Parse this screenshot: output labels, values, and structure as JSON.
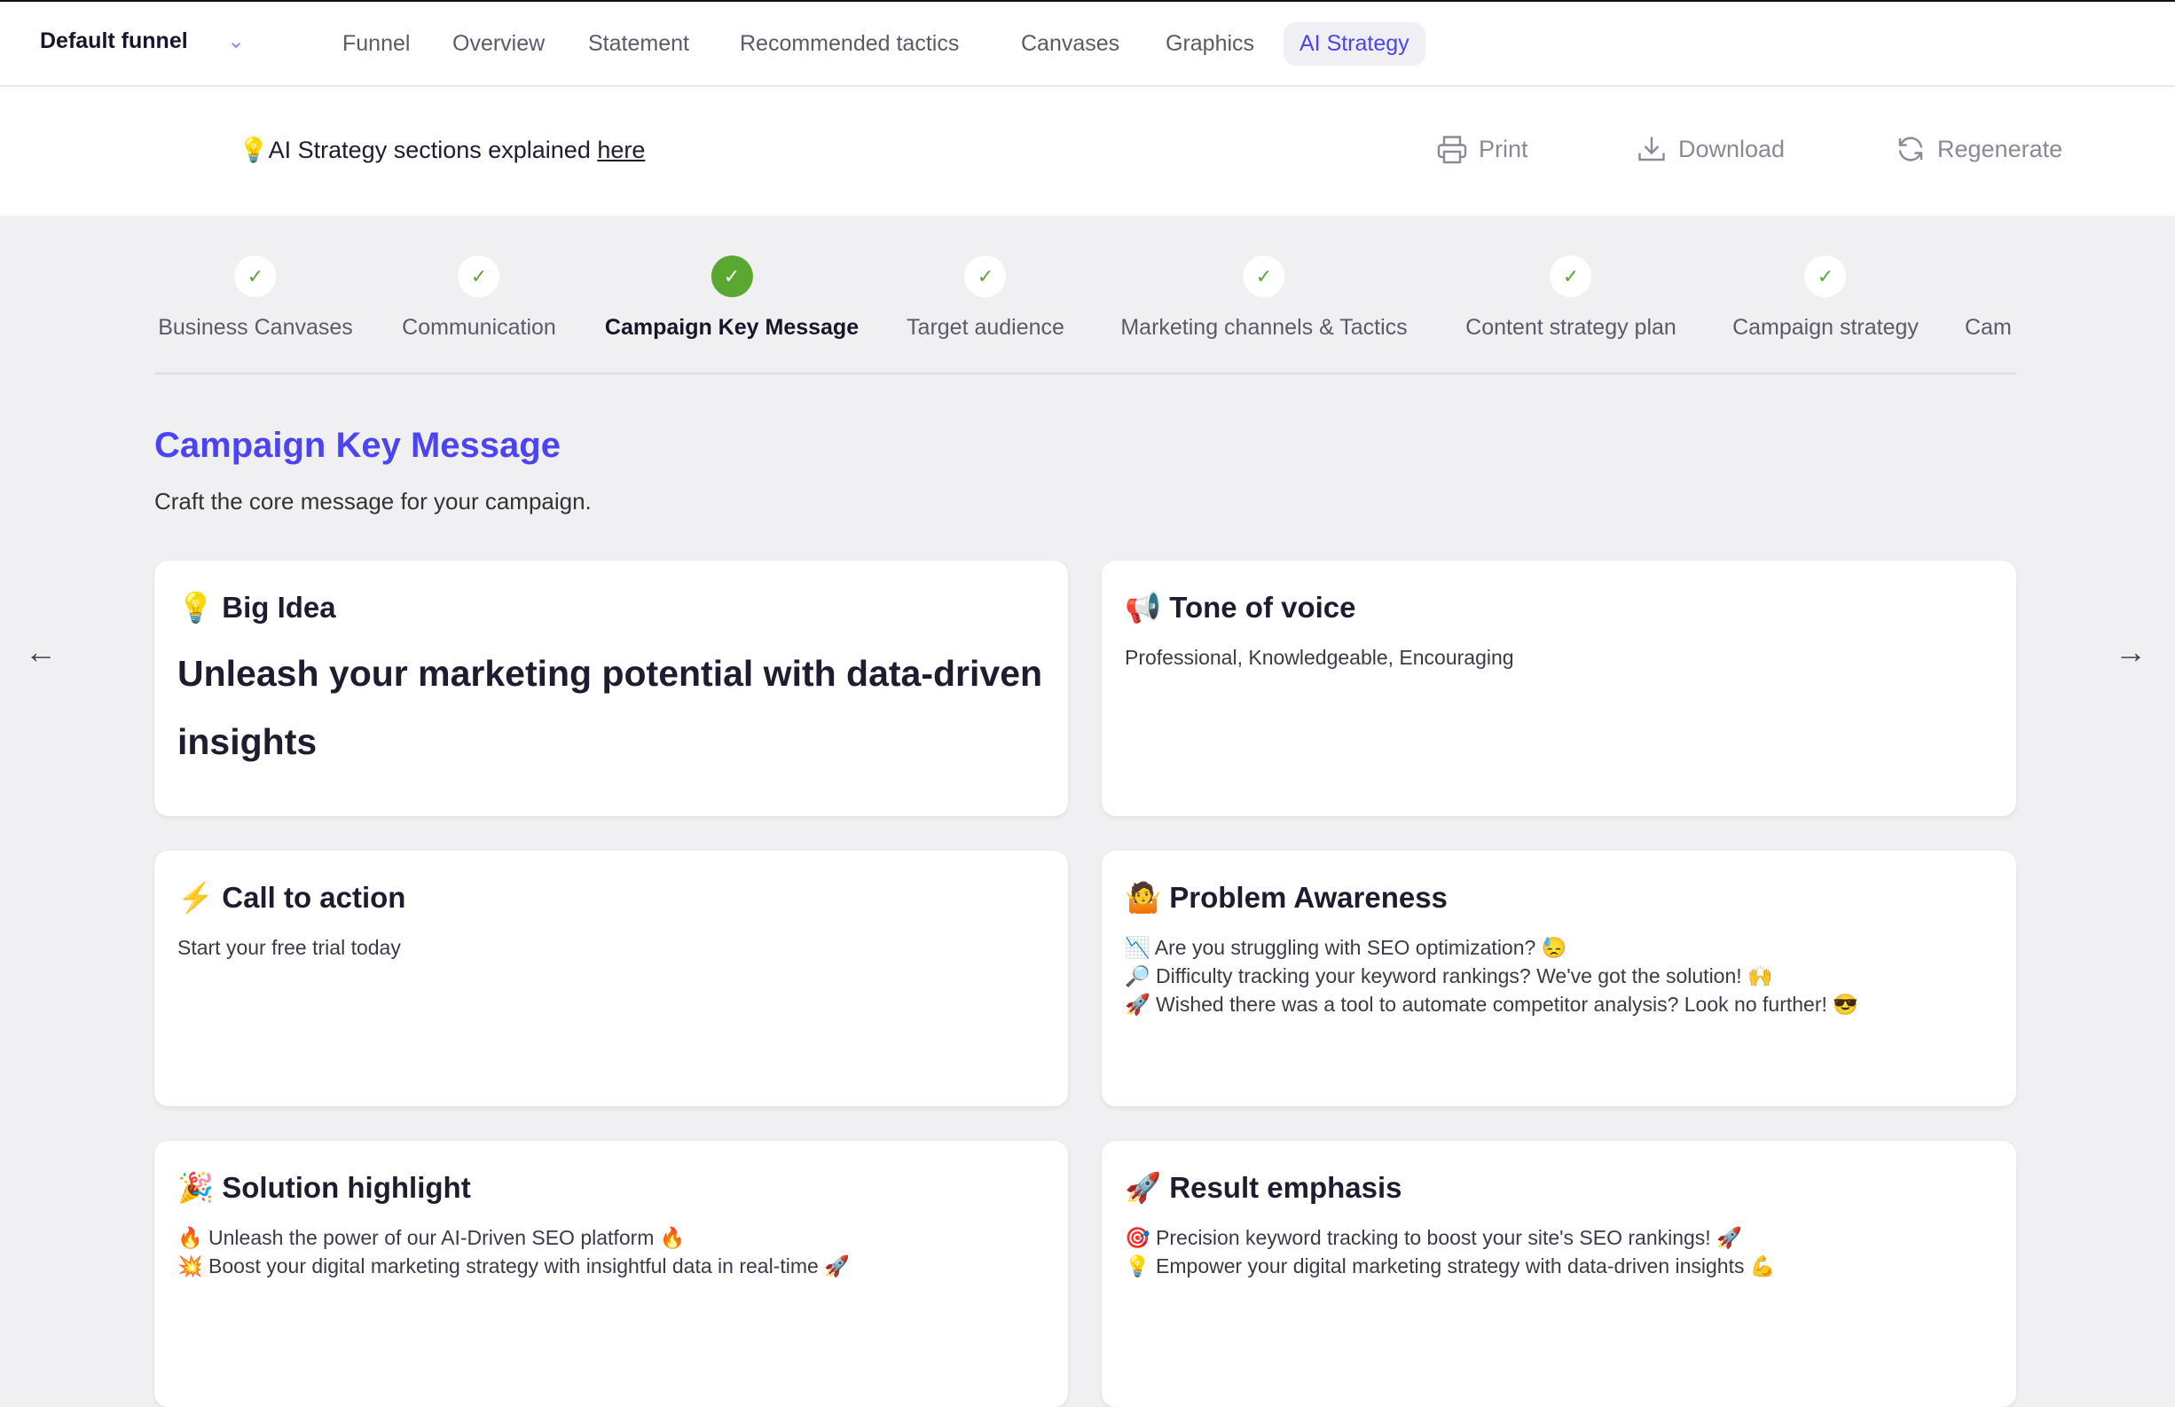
{
  "header": {
    "funnel_name": "Default funnel",
    "nav": [
      "Funnel",
      "Overview",
      "Statement",
      "Recommended tactics",
      "Canvases",
      "Graphics",
      "AI Strategy"
    ],
    "active_nav": "AI Strategy"
  },
  "toolbar": {
    "explain_text": "AI Strategy sections explained ",
    "explain_link": "here",
    "print": "Print",
    "download": "Download",
    "regenerate": "Regenerate"
  },
  "steps": [
    "Business Canvases",
    "Communication",
    "Campaign Key Message",
    "Target audience",
    "Marketing channels & Tactics",
    "Content strategy plan",
    "Campaign strategy",
    "Cam"
  ],
  "current_step": "Campaign Key Message",
  "section": {
    "title": "Campaign Key Message",
    "subtitle": "Craft the core message for your campaign."
  },
  "cards": {
    "big_idea": {
      "icon": "💡",
      "title": "Big Idea",
      "text": "Unleash your marketing potential with data-driven insights"
    },
    "tone": {
      "icon": "📢",
      "title": "Tone of voice",
      "text": "Professional, Knowledgeable, Encouraging"
    },
    "cta": {
      "icon": "⚡",
      "title": "Call to action",
      "text": "Start your free trial today"
    },
    "problem": {
      "icon": "🤷",
      "title": "Problem Awareness",
      "lines": [
        "📉 Are you struggling with SEO optimization? 😓",
        "🔎 Difficulty tracking your keyword rankings? We've got the solution! 🙌",
        "🚀 Wished there was a tool to automate competitor analysis? Look no further! 😎"
      ]
    },
    "solution": {
      "icon": "🎉",
      "title": "Solution highlight",
      "lines": [
        "🔥 Unleash the power of our AI-Driven SEO platform 🔥",
        "💥 Boost your digital marketing strategy with insightful data in real-time 🚀"
      ]
    },
    "result": {
      "icon": "🚀",
      "title": "Result emphasis",
      "lines": [
        "🎯 Precision keyword tracking to boost your site's SEO rankings! 🚀",
        "💡 Empower your digital marketing strategy with data-driven insights 💪"
      ]
    }
  },
  "colors": {
    "accent": "#4b44f0",
    "success": "#5aa832"
  }
}
